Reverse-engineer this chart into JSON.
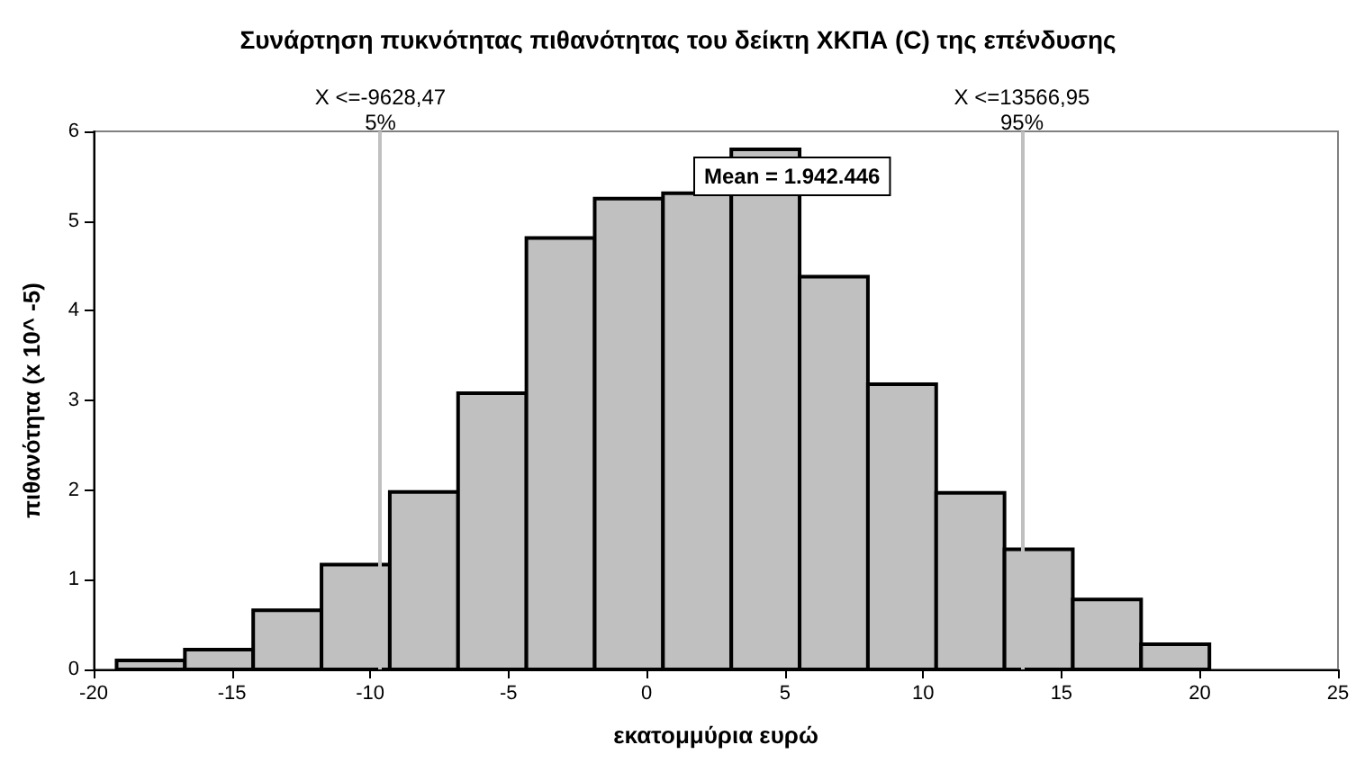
{
  "chart_data": {
    "type": "histogram",
    "title": "Συνάρτηση πυκνότητας πιθανότητας του δείκτη ΧΚΠΑ (C) της επένδυσης",
    "xlabel": "εκατομμύρια ευρώ",
    "ylabel": "πιθανότητα (x 10^ -5)",
    "bins": [
      -19.17,
      -16.7,
      -14.23,
      -11.76,
      -9.29,
      -6.82,
      -4.35,
      -1.88,
      0.59,
      3.06,
      5.53,
      8.0,
      10.47,
      12.94,
      15.41,
      17.88,
      20.35
    ],
    "values": [
      0.1,
      0.22,
      0.66,
      1.17,
      1.98,
      3.08,
      4.81,
      5.25,
      5.31,
      5.8,
      4.38,
      3.18,
      1.97,
      1.34,
      0.78,
      0.28
    ],
    "color": "#c0c0c0",
    "xlim": [
      -20,
      25
    ],
    "xticks": [
      -20,
      -15,
      -10,
      -5,
      0,
      5,
      10,
      15,
      20,
      25
    ],
    "ylim": [
      0,
      6
    ],
    "yticks": [
      0,
      1,
      2,
      3,
      4,
      5,
      6
    ],
    "grid": false,
    "ref_lines": [
      {
        "axis": "x",
        "value": -9.62847,
        "label": "X <=-9628,47\n5%",
        "color": "#c0c0c0"
      },
      {
        "axis": "x",
        "value": 13.56695,
        "label": "X <=13566,95\n95%",
        "color": "#c0c0c0"
      }
    ],
    "annotations": [
      "Mean = 1.942.446"
    ]
  }
}
